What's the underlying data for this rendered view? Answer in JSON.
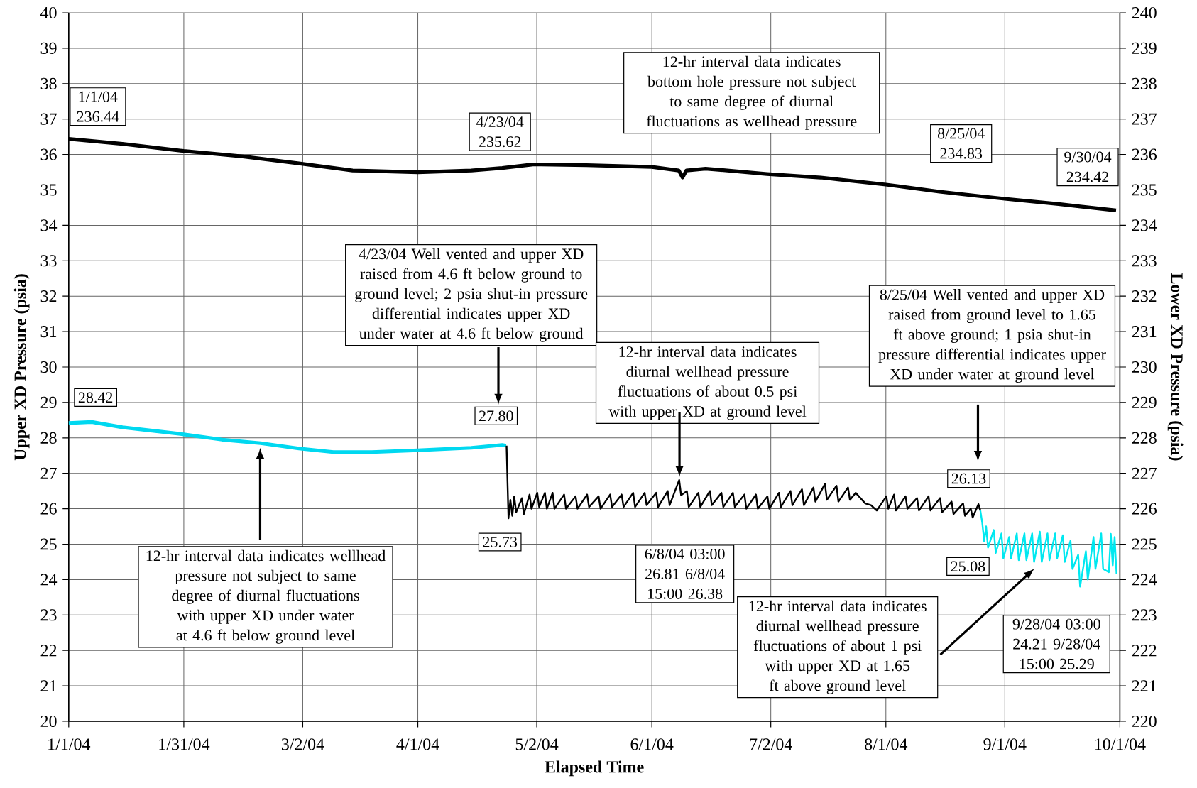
{
  "chart_data": {
    "type": "line",
    "xlabel": "Elapsed Time",
    "ylabel": "Upper XD Pressure (psia)",
    "y2label": "Lower XD Pressure (psia)",
    "xlim": [
      "2004-01-01",
      "2004-10-01"
    ],
    "ylim": [
      20,
      40
    ],
    "y2lim": [
      220,
      240
    ],
    "xticks": [
      {
        "value": "2004-01-01",
        "label": "1/1/04"
      },
      {
        "value": "2004-01-31",
        "label": "1/31/04"
      },
      {
        "value": "2004-03-02",
        "label": "3/2/04"
      },
      {
        "value": "2004-04-01",
        "label": "4/1/04"
      },
      {
        "value": "2004-05-02",
        "label": "5/2/04"
      },
      {
        "value": "2004-06-01",
        "label": "6/1/04"
      },
      {
        "value": "2004-07-02",
        "label": "7/2/04"
      },
      {
        "value": "2004-08-01",
        "label": "8/1/04"
      },
      {
        "value": "2004-09-01",
        "label": "9/1/04"
      },
      {
        "value": "2004-10-01",
        "label": "10/1/04"
      }
    ],
    "yticks": [
      20,
      21,
      22,
      23,
      24,
      25,
      26,
      27,
      28,
      29,
      30,
      31,
      32,
      33,
      34,
      35,
      36,
      37,
      38,
      39,
      40
    ],
    "y2ticks": [
      220,
      221,
      222,
      223,
      224,
      225,
      226,
      227,
      228,
      229,
      230,
      231,
      232,
      233,
      234,
      235,
      236,
      237,
      238,
      239,
      240
    ],
    "grid": true,
    "series": [
      {
        "color": "#000000",
        "axis": "y2",
        "x": [
          "2004-01-01",
          "2004-01-15",
          "2004-01-31",
          "2004-02-15",
          "2004-03-01",
          "2004-03-15",
          "2004-04-01",
          "2004-04-15",
          "2004-04-23",
          "2004-05-01",
          "2004-05-15",
          "2004-06-01",
          "2004-06-08",
          "2004-06-09",
          "2004-06-10",
          "2004-06-15",
          "2004-07-01",
          "2004-07-15",
          "2004-08-01",
          "2004-08-15",
          "2004-08-25",
          "2004-09-01",
          "2004-09-15",
          "2004-09-30"
        ],
        "values": [
          236.44,
          236.3,
          236.1,
          235.95,
          235.75,
          235.55,
          235.5,
          235.55,
          235.62,
          235.72,
          235.7,
          235.65,
          235.55,
          235.35,
          235.55,
          235.6,
          235.45,
          235.35,
          235.15,
          234.95,
          234.83,
          234.75,
          234.6,
          234.42
        ]
      },
      {
        "color": "#00d8f0",
        "x": [
          "2004-01-01",
          "2004-01-07",
          "2004-01-15",
          "2004-01-31",
          "2004-02-10",
          "2004-02-20",
          "2004-03-01",
          "2004-03-10",
          "2004-03-20",
          "2004-04-01",
          "2004-04-15",
          "2004-04-23",
          "2004-04-24"
        ],
        "values": [
          28.42,
          28.45,
          28.3,
          28.1,
          27.95,
          27.85,
          27.7,
          27.6,
          27.6,
          27.65,
          27.72,
          27.8,
          27.78
        ]
      },
      {
        "color": "#000000",
        "x": [
          "2004-04-24T03:00",
          "2004-04-24T15:00",
          "2004-04-25T03:00",
          "2004-04-25T15:00",
          "2004-04-26T03:00",
          "2004-04-26T15:00",
          "2004-04-28T03:00",
          "2004-04-28T15:00",
          "2004-04-30T03:00",
          "2004-04-30T15:00",
          "2004-05-02T03:00",
          "2004-05-02T15:00",
          "2004-05-04T03:00",
          "2004-05-04T15:00",
          "2004-05-06T03:00",
          "2004-05-06T15:00",
          "2004-05-09T03:00",
          "2004-05-09T15:00",
          "2004-05-12T03:00",
          "2004-05-12T15:00",
          "2004-05-15T03:00",
          "2004-05-15T15:00",
          "2004-05-18T03:00",
          "2004-05-18T15:00",
          "2004-05-21T03:00",
          "2004-05-21T15:00",
          "2004-05-24T03:00",
          "2004-05-24T15:00",
          "2004-05-27T03:00",
          "2004-05-27T15:00",
          "2004-05-30T03:00",
          "2004-05-30T15:00",
          "2004-06-02T03:00",
          "2004-06-02T15:00",
          "2004-06-05T03:00",
          "2004-06-05T15:00",
          "2004-06-08T03:00",
          "2004-06-08T15:00",
          "2004-06-10T03:00",
          "2004-06-10T15:00",
          "2004-06-13T03:00",
          "2004-06-13T15:00",
          "2004-06-16T03:00",
          "2004-06-16T15:00",
          "2004-06-19T03:00",
          "2004-06-19T15:00",
          "2004-06-22T03:00",
          "2004-06-22T15:00",
          "2004-06-25T03:00",
          "2004-06-25T15:00",
          "2004-06-28T03:00",
          "2004-06-28T15:00",
          "2004-07-01T03:00",
          "2004-07-01T15:00",
          "2004-07-04T03:00",
          "2004-07-04T15:00",
          "2004-07-07T03:00",
          "2004-07-07T15:00",
          "2004-07-10T03:00",
          "2004-07-10T15:00",
          "2004-07-13T03:00",
          "2004-07-13T15:00",
          "2004-07-16T03:00",
          "2004-07-16T15:00",
          "2004-07-19T03:00",
          "2004-07-19T15:00",
          "2004-07-22T03:00",
          "2004-07-22T15:00",
          "2004-07-24T03:00",
          "2004-07-26T15:00",
          "2004-07-28T03:00",
          "2004-07-29T15:00",
          "2004-08-01T03:00",
          "2004-08-01T15:00",
          "2004-08-03T03:00",
          "2004-08-03T15:00",
          "2004-08-06T03:00",
          "2004-08-06T15:00",
          "2004-08-09T03:00",
          "2004-08-09T15:00",
          "2004-08-12T03:00",
          "2004-08-12T15:00",
          "2004-08-15T03:00",
          "2004-08-15T15:00",
          "2004-08-18T03:00",
          "2004-08-18T15:00",
          "2004-08-21T03:00",
          "2004-08-21T15:00",
          "2004-08-23T03:00",
          "2004-08-23T15:00",
          "2004-08-25T03:00",
          "2004-08-25T15:00"
        ],
        "values": [
          27.78,
          25.73,
          26.25,
          25.8,
          26.35,
          25.9,
          26.3,
          25.85,
          26.4,
          26.0,
          26.45,
          26.05,
          26.45,
          26.0,
          26.45,
          26.0,
          26.4,
          26.0,
          26.35,
          26.0,
          26.4,
          26.05,
          26.35,
          26.0,
          26.4,
          26.05,
          26.4,
          26.05,
          26.45,
          26.05,
          26.45,
          26.1,
          26.45,
          26.05,
          26.5,
          26.1,
          26.81,
          26.38,
          26.5,
          26.05,
          26.45,
          26.05,
          26.5,
          26.1,
          26.45,
          26.05,
          26.45,
          26.05,
          26.4,
          26.0,
          26.4,
          26.0,
          26.35,
          26.0,
          26.45,
          26.05,
          26.5,
          26.1,
          26.55,
          26.1,
          26.6,
          26.2,
          26.7,
          26.25,
          26.65,
          26.2,
          26.6,
          26.25,
          26.45,
          26.15,
          26.1,
          25.95,
          26.35,
          26.0,
          26.4,
          25.95,
          26.35,
          26.0,
          26.3,
          25.95,
          26.35,
          25.95,
          26.3,
          25.9,
          26.2,
          25.85,
          26.15,
          25.8,
          26.0,
          25.75,
          26.13,
          25.95
        ]
      },
      {
        "color": "#00e8f0",
        "x": [
          "2004-08-25T15:00",
          "2004-08-26T03:00",
          "2004-08-26T15:00",
          "2004-08-27T03:00",
          "2004-08-27T15:00",
          "2004-08-29T03:00",
          "2004-08-29T15:00",
          "2004-08-31T03:00",
          "2004-08-31T15:00",
          "2004-09-02T03:00",
          "2004-09-02T15:00",
          "2004-09-04T03:00",
          "2004-09-04T15:00",
          "2004-09-06T03:00",
          "2004-09-06T15:00",
          "2004-09-08T03:00",
          "2004-09-08T15:00",
          "2004-09-10T03:00",
          "2004-09-10T15:00",
          "2004-09-12T03:00",
          "2004-09-12T15:00",
          "2004-09-14T03:00",
          "2004-09-14T15:00",
          "2004-09-16T03:00",
          "2004-09-16T15:00",
          "2004-09-18T03:00",
          "2004-09-18T15:00",
          "2004-09-20T03:00",
          "2004-09-20T15:00",
          "2004-09-22T03:00",
          "2004-09-22T15:00",
          "2004-09-24T03:00",
          "2004-09-24T15:00",
          "2004-09-26T03:00",
          "2004-09-26T15:00",
          "2004-09-28T03:00",
          "2004-09-28T15:00",
          "2004-09-29T03:00",
          "2004-09-29T15:00",
          "2004-09-30T03:00"
        ],
        "values": [
          25.95,
          25.6,
          25.08,
          25.5,
          24.9,
          25.4,
          24.75,
          25.3,
          24.6,
          25.2,
          24.6,
          25.3,
          24.55,
          25.3,
          24.55,
          25.3,
          24.5,
          25.35,
          24.5,
          25.3,
          24.55,
          25.3,
          24.6,
          25.25,
          24.5,
          25.1,
          24.3,
          24.7,
          23.8,
          24.8,
          24.0,
          25.2,
          24.3,
          25.3,
          24.3,
          24.21,
          25.29,
          24.4,
          25.2,
          24.15
        ]
      }
    ],
    "annotations": [
      "1/1/04 236.44",
      "4/23/04 235.62",
      "8/25/04 234.83",
      "9/30/04 234.42",
      "12-hr interval data indicates bottom hole pressure not subject to same degree of diurnal fluctuations as wellhead pressure",
      "28.42",
      "4/23/04 Well vented and upper XD raised from 4.6 ft below ground to ground level; 2 psia shut-in pressure differential indicates upper XD under water at 4.6 ft below ground",
      "27.80",
      "25.73",
      "12-hr interval data indicates diurnal wellhead pressure fluctuations of about 0.5 psi with upper XD at ground level",
      "6/8/04 03:00 26.81 6/8/04 15:00 26.38",
      "8/25/04 Well vented and upper XD raised from ground level to 1.65 ft above ground; 1 psia shut-in pressure differential indicates upper XD under water at ground level",
      "26.13",
      "25.08",
      "12-hr interval data indicates wellhead pressure not subject to same degree of diurnal fluctuations with upper XD under water at 4.6 ft below ground level",
      "12-hr interval data indicates diurnal wellhead pressure fluctuations of about 1 psi with upper XD at 1.65 ft above ground level",
      "9/28/04 03:00 24.21 9/28/04 15:00 25.29"
    ]
  }
}
